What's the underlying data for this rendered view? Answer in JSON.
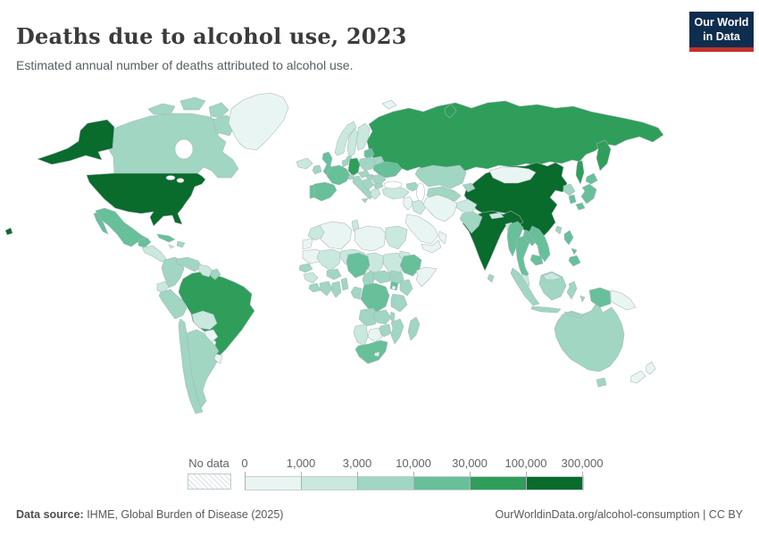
{
  "header": {
    "title": "Deaths due to alcohol use, 2023",
    "subtitle": "Estimated annual number of deaths attributed to alcohol use."
  },
  "logo": {
    "line1": "Our World",
    "line2": "in Data",
    "bg_color": "#0f2d4e",
    "accent_color": "#bf352b"
  },
  "legend": {
    "no_data_label": "No data",
    "tick_labels": [
      "0",
      "1,000",
      "3,000",
      "10,000",
      "30,000",
      "100,000",
      "300,000"
    ]
  },
  "footer": {
    "source_label": "Data source:",
    "source_text": " IHME, Global Burden of Disease (2025)",
    "link": "OurWorldinData.org/alcohol-consumption | CC BY"
  },
  "chart_data": {
    "type": "choropleth-map",
    "title": "Deaths due to alcohol use, 2023",
    "unit": "deaths",
    "year": 2023,
    "scale_thresholds": [
      0,
      1000,
      3000,
      10000,
      30000,
      100000,
      300000
    ],
    "bins": [
      {
        "range": "0-1,000",
        "color": "#e9f5f2"
      },
      {
        "range": "1,000-3,000",
        "color": "#c9e8de"
      },
      {
        "range": "3,000-10,000",
        "color": "#a0d6c2"
      },
      {
        "range": "10,000-30,000",
        "color": "#67c09a"
      },
      {
        "range": "30,000-100,000",
        "color": "#2f9e5b"
      },
      {
        "range": "100,000-300,000",
        "color": "#096b2c"
      }
    ],
    "countries": {
      "united-states": 6,
      "canada": 3,
      "greenland": 1,
      "mexico": 4,
      "guatemala-honduras": 2,
      "costa-rica-panama": 3,
      "cuba": 4,
      "hispaniola": 3,
      "jamaica": 2,
      "colombia": 3,
      "venezuela": 3,
      "guyana-suriname": 2,
      "french-guiana": 3,
      "ecuador": 2,
      "peru": 3,
      "brazil": 5,
      "bolivia": 2,
      "paraguay": 1,
      "uruguay": 1,
      "chile": 3,
      "argentina": 3,
      "iceland": 2,
      "united-kingdom": 4,
      "ireland": 3,
      "norway": 2,
      "sweden": 2,
      "finland": 2,
      "denmark": 3,
      "baltics": 4,
      "poland": 3,
      "germany": 5,
      "benelux": 3,
      "france": 4,
      "spain": 4,
      "portugal": 4,
      "italy": 3,
      "switzerland": 3,
      "czechia-austria": 3,
      "hungary": 3,
      "balkans": 3,
      "greece": 2,
      "bulgaria": 3,
      "romania": 3,
      "ukraine": 4,
      "belarus": 3,
      "russia": 5,
      "svalbard": 1,
      "kazakhstan": 3,
      "central-asia": 3,
      "kyrgyzstan-tajikistan": 3,
      "caucasus": 3,
      "turkey": 2,
      "levant": 1,
      "iraq": 2,
      "iran": 1,
      "saudi-arabia": 1,
      "yemen": 1,
      "oman": 1,
      "afghanistan": 2,
      "pakistan": 3,
      "india": 6,
      "sri-lanka": 3,
      "nepal": 2,
      "bangladesh": 2,
      "china": 6,
      "mongolia": 1,
      "taiwan": 3,
      "myanmar": 4,
      "thailand": 4,
      "laos": 4,
      "vietnam": 4,
      "cambodia": 4,
      "malaysia": 2,
      "malaysia-borneo": 2,
      "indonesia": 3,
      "indonesia-papua": 4,
      "papua-new-guinea": 1,
      "philippines": 4,
      "japan": 4,
      "south-korea": 4,
      "north-korea": 3,
      "morocco": 2,
      "western-sahara": 1,
      "algeria": 1,
      "tunisia": 2,
      "libya": 1,
      "egypt": 2,
      "mauritania": 1,
      "mali": 2,
      "niger": 2,
      "chad": 2,
      "sudan": 2,
      "eritrea": 2,
      "senegal": 3,
      "guinea": 2,
      "sierra-leone": 3,
      "ivory-coast": 3,
      "ghana": 3,
      "togo-benin": 3,
      "burkina-faso": 3,
      "nigeria": 4,
      "cameroon": 3,
      "central-african-republic": 3,
      "south-sudan": 3,
      "ethiopia": 4,
      "somalia": 1,
      "kenya": 3,
      "uganda": 4,
      "dr-congo": 4,
      "congo-gabon": 3,
      "tanzania": 3,
      "angola": 3,
      "zambia": 3,
      "malawi": 3,
      "mozambique": 3,
      "zimbabwe": 3,
      "botswana": 1,
      "namibia": 2,
      "south-africa": 4,
      "lesotho": 1,
      "madagascar": 3,
      "australia": 3,
      "new-zealand": 1
    }
  }
}
